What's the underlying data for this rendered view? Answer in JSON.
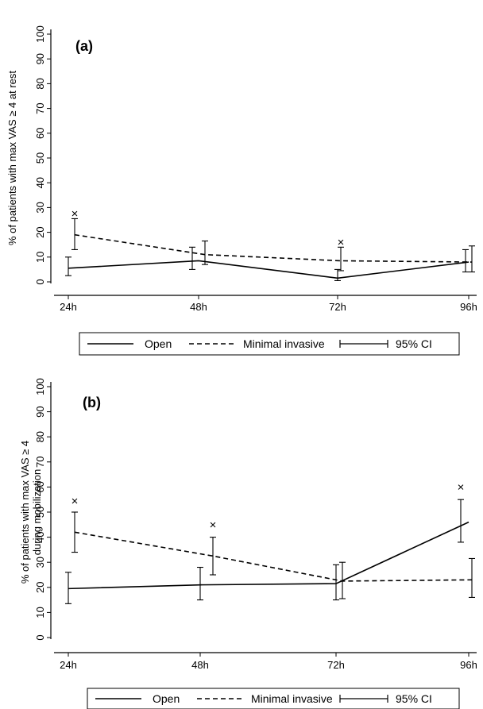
{
  "chart_data": [
    {
      "type": "line",
      "panel_label": "(a)",
      "ylabel": "% of patients with max VAS ≥ 4 at rest",
      "ylabel_lines": [
        "% of patients with max VAS ≥ 4 at rest"
      ],
      "categories": [
        "24h",
        "48h",
        "72h",
        "96h"
      ],
      "yticks": [
        "0",
        "10",
        "20",
        "30",
        "40",
        "50",
        "60",
        "70",
        "80",
        "90",
        "100"
      ],
      "ylim": [
        0,
        100
      ],
      "grid": false,
      "series": [
        {
          "name": "Open",
          "style": "solid",
          "values": [
            5.5,
            8.5,
            1.5,
            8
          ],
          "ci": [
            [
              2.5,
              10
            ],
            [
              5,
              14
            ],
            [
              0.5,
              5
            ],
            [
              4,
              13
            ]
          ]
        },
        {
          "name": "Minimal invasive",
          "style": "dashed",
          "values": [
            19,
            11,
            8.5,
            8
          ],
          "ci": [
            [
              13,
              25.5
            ],
            [
              7,
              16.5
            ],
            [
              4.5,
              14
            ],
            [
              4,
              14.5
            ]
          ]
        }
      ],
      "significance_marker": "×",
      "significance_at": [
        {
          "category": "24h",
          "y": 27.5
        },
        {
          "category": "72h",
          "y": 16
        }
      ],
      "legend": [
        "Open",
        "Minimal invasive",
        "95% CI"
      ]
    },
    {
      "type": "line",
      "panel_label": "(b)",
      "ylabel": "% of patients with max VAS ≥ 4 during mobilization",
      "ylabel_lines": [
        "% of patients with max VAS ≥ 4",
        "during mobilization"
      ],
      "categories": [
        "24h",
        "48h",
        "72h",
        "96h"
      ],
      "yticks": [
        "0",
        "10",
        "20",
        "30",
        "40",
        "50",
        "60",
        "70",
        "80",
        "90",
        "100"
      ],
      "ylim": [
        0,
        100
      ],
      "grid": false,
      "series": [
        {
          "name": "Open",
          "style": "solid",
          "values": [
            19.5,
            21,
            21.5,
            46
          ],
          "ci": [
            [
              13.5,
              26
            ],
            [
              15,
              28
            ],
            [
              15,
              29
            ],
            [
              38,
              55
            ]
          ]
        },
        {
          "name": "Minimal invasive",
          "style": "dashed",
          "values": [
            42,
            32.5,
            22.5,
            23
          ],
          "ci": [
            [
              34,
              50
            ],
            [
              25,
              40
            ],
            [
              15.5,
              30
            ],
            [
              16,
              31.5
            ]
          ]
        }
      ],
      "significance_marker": "×",
      "significance_at": [
        {
          "category": "24h",
          "y": 54.5
        },
        {
          "category": "48h",
          "y": 45
        },
        {
          "category": "96h",
          "y": 60
        }
      ],
      "legend": [
        "Open",
        "Minimal invasive",
        "95% CI"
      ]
    }
  ]
}
